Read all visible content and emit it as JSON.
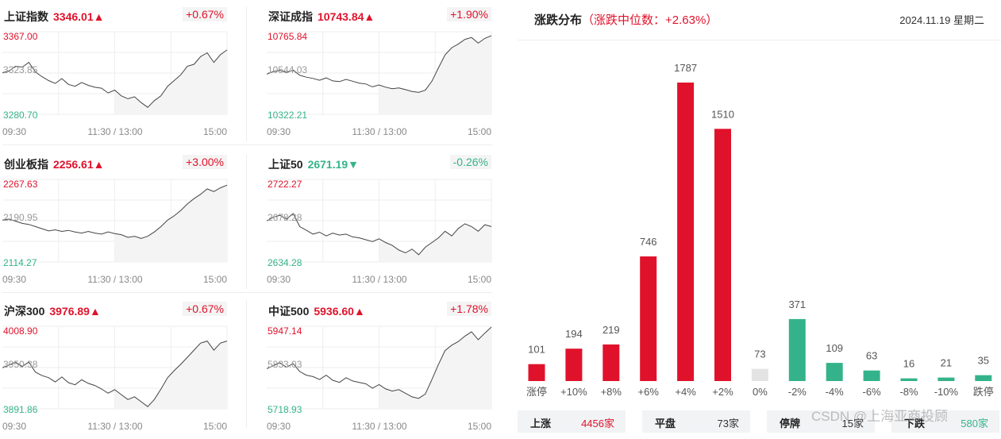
{
  "colors": {
    "up": "#e0122b",
    "down": "#34b38a",
    "flat": "#e3e3e3"
  },
  "time_ticks": [
    "09:30",
    "11:30 / 13:00",
    "15:00"
  ],
  "panels": [
    {
      "name": "上证指数",
      "value": "3346.01▲",
      "change": "+0.67%",
      "dir": "up",
      "y_high": "3367.00",
      "y_mid": "3323.85",
      "y_low": "3280.70",
      "series": [
        3324,
        3326,
        3331,
        3330,
        3335,
        3325,
        3320,
        3316,
        3313,
        3318,
        3312,
        3310,
        3314,
        3311,
        3309,
        3308,
        3303,
        3306,
        3300,
        3297,
        3299,
        3293,
        3288,
        3295,
        3300,
        3310,
        3316,
        3322,
        3331,
        3333,
        3341,
        3345,
        3335,
        3343,
        3348
      ]
    },
    {
      "name": "深证成指",
      "value": "10743.84▲",
      "change": "+1.90%",
      "dir": "up",
      "y_high": "10765.84",
      "y_mid": "10544.03",
      "y_low": "10322.21",
      "series": [
        10538,
        10552,
        10558,
        10546,
        10560,
        10532,
        10522,
        10515,
        10505,
        10518,
        10502,
        10498,
        10510,
        10500,
        10490,
        10485,
        10470,
        10480,
        10468,
        10460,
        10464,
        10455,
        10445,
        10440,
        10452,
        10500,
        10572,
        10642,
        10680,
        10700,
        10725,
        10735,
        10705,
        10730,
        10745
      ]
    },
    {
      "name": "创业板指",
      "value": "2256.61▲",
      "change": "+3.00%",
      "dir": "up",
      "y_high": "2267.63",
      "y_mid": "2190.95",
      "y_low": "2114.27",
      "series": [
        2192,
        2194,
        2190,
        2186,
        2184,
        2180,
        2176,
        2172,
        2174,
        2171,
        2173,
        2170,
        2168,
        2171,
        2168,
        2166,
        2170,
        2167,
        2165,
        2160,
        2162,
        2158,
        2162,
        2170,
        2180,
        2192,
        2200,
        2210,
        2222,
        2232,
        2240,
        2250,
        2245,
        2252,
        2257
      ]
    },
    {
      "name": "上证50",
      "value": "2671.19▼",
      "change": "-0.26%",
      "dir": "down",
      "y_high": "2722.27",
      "y_mid": "2678.28",
      "y_low": "2634.28",
      "series": [
        2678,
        2682,
        2684,
        2680,
        2686,
        2672,
        2668,
        2664,
        2666,
        2662,
        2665,
        2663,
        2664,
        2661,
        2660,
        2658,
        2656,
        2659,
        2655,
        2652,
        2647,
        2644,
        2648,
        2642,
        2650,
        2655,
        2660,
        2667,
        2662,
        2670,
        2675,
        2672,
        2667,
        2674,
        2672
      ]
    },
    {
      "name": "沪深300",
      "value": "3976.89▲",
      "change": "+0.67%",
      "dir": "up",
      "y_high": "4008.90",
      "y_mid": "3950.38",
      "y_low": "3891.86",
      "series": [
        3950,
        3954,
        3958,
        3952,
        3958,
        3944,
        3939,
        3936,
        3930,
        3937,
        3929,
        3926,
        3933,
        3928,
        3925,
        3920,
        3914,
        3919,
        3912,
        3905,
        3909,
        3902,
        3895,
        3905,
        3920,
        3936,
        3946,
        3955,
        3965,
        3975,
        3985,
        3988,
        3975,
        3985,
        3988
      ]
    },
    {
      "name": "中证500",
      "value": "5936.60▲",
      "change": "+1.78%",
      "dir": "up",
      "y_high": "5947.14",
      "y_mid": "5833.03",
      "y_low": "5718.93",
      "series": [
        5830,
        5838,
        5846,
        5834,
        5844,
        5822,
        5812,
        5808,
        5800,
        5812,
        5798,
        5792,
        5805,
        5796,
        5792,
        5788,
        5776,
        5786,
        5774,
        5768,
        5772,
        5762,
        5752,
        5748,
        5760,
        5800,
        5842,
        5880,
        5895,
        5905,
        5920,
        5932,
        5910,
        5928,
        5945
      ]
    }
  ],
  "distribution": {
    "title": "涨跌分布",
    "subtitle": "（涨跌中位数：+2.63%）",
    "date": "2024.11.19 星期二",
    "chart_data": {
      "type": "bar",
      "categories": [
        "涨停",
        "+10%",
        "+8%",
        "+6%",
        "+4%",
        "+2%",
        "0%",
        "-2%",
        "-4%",
        "-6%",
        "-8%",
        "-10%",
        "跌停"
      ],
      "values": [
        101,
        194,
        219,
        746,
        1787,
        1510,
        73,
        371,
        109,
        63,
        16,
        21,
        35
      ],
      "kinds": [
        "up",
        "up",
        "up",
        "up",
        "up",
        "up",
        "flat",
        "down",
        "down",
        "down",
        "down",
        "down",
        "down"
      ]
    }
  },
  "summary": [
    {
      "label": "上涨",
      "value": "4456家",
      "dir": "up"
    },
    {
      "label": "平盘",
      "value": "73家",
      "dir": "flat"
    },
    {
      "label": "停牌",
      "value": "15家",
      "dir": "flat"
    },
    {
      "label": "下跌",
      "value": "580家",
      "dir": "down"
    }
  ],
  "watermark": "CSDN @上海亚商投顾"
}
